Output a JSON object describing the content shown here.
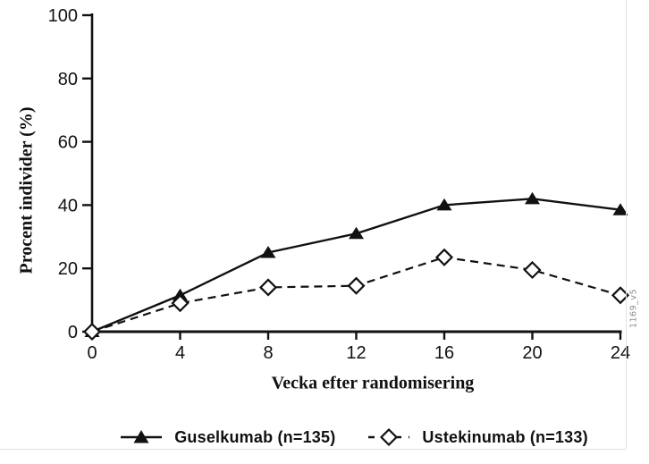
{
  "figure": {
    "background": "#ffffff",
    "ink_color": "#111111",
    "frame_line_color": "#e2e2e2",
    "watermark_color": "#8d8d8d"
  },
  "watermark": "1169_v5",
  "chart_data": {
    "type": "line",
    "title": "",
    "xlabel": "Vecka efter randomisering",
    "ylabel": "Procent individer (%)",
    "x": [
      0,
      4,
      8,
      12,
      16,
      20,
      24
    ],
    "xticks": [
      0,
      4,
      8,
      12,
      16,
      20,
      24
    ],
    "yticks": [
      0,
      20,
      40,
      60,
      80,
      100
    ],
    "xlim": [
      0,
      24
    ],
    "ylim": [
      0,
      100
    ],
    "grid": false,
    "legend_position": "bottom",
    "series": [
      {
        "name": "Guselkumab (n=135)",
        "line": "solid",
        "marker": "filled-triangle",
        "color": "#111111",
        "values": [
          0,
          11.5,
          25,
          31,
          40,
          42,
          38.5
        ]
      },
      {
        "name": "Ustekinumab (n=133)",
        "line": "dashed",
        "marker": "open-diamond",
        "color": "#111111",
        "values": [
          0,
          9,
          14,
          14.5,
          23.5,
          19.5,
          11.5
        ]
      }
    ]
  }
}
